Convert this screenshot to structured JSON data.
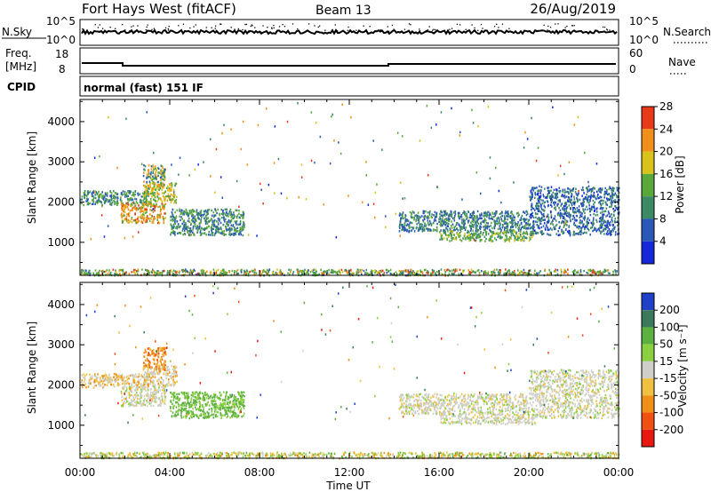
{
  "header": {
    "station": "Fort Hays West (fitACF)",
    "beam": "Beam 13",
    "date": "26/Aug/2019"
  },
  "status_panels": {
    "nsky_label": "N.Sky",
    "nsearch_label": "N.Search",
    "noise_ticks_left": [
      "10^5",
      "10^0"
    ],
    "noise_ticks_right": [
      "10^5",
      "10^0"
    ],
    "freq_label_line1": "Freq.",
    "freq_label_line2": "[MHz]",
    "freq_ticks": [
      "18",
      "8"
    ],
    "nave_label": "Nave",
    "nave_ticks": [
      "60",
      "0"
    ],
    "cpid_label": "CPID",
    "cpid_text": "normal (fast) 151 IF"
  },
  "chart_data": [
    {
      "type": "heatmap",
      "name": "power",
      "ylabel": "Slant Range [km]",
      "yticks": [
        1000,
        2000,
        3000,
        4000
      ],
      "ylim": [
        180,
        4550
      ],
      "colorbar_label": "Power [dB]",
      "colorbar_ticks": [
        "4",
        "8",
        "12",
        "16",
        "20",
        "24",
        "28"
      ],
      "colorbar_colors": [
        "#1428d8",
        "#2a58b8",
        "#3c8a64",
        "#5aa83a",
        "#d8c21c",
        "#f0901a",
        "#e83a18"
      ],
      "echo_regions": [
        {
          "t_start": 0.0,
          "t_end": 24.0,
          "r_start": 200,
          "r_end": 350,
          "dominant": "mixed-high"
        },
        {
          "t_start": 0.0,
          "t_end": 3.0,
          "r_start": 1950,
          "r_end": 2300,
          "dominant": "green-blue"
        },
        {
          "t_start": 1.8,
          "t_end": 3.8,
          "r_start": 1500,
          "r_end": 2000,
          "dominant": "orange-yellow"
        },
        {
          "t_start": 2.8,
          "t_end": 4.3,
          "r_start": 2000,
          "r_end": 2500,
          "dominant": "green-yellow"
        },
        {
          "t_start": 2.8,
          "t_end": 3.8,
          "r_start": 2400,
          "r_end": 2950,
          "dominant": "blue-orange"
        },
        {
          "t_start": 4.0,
          "t_end": 7.3,
          "r_start": 1200,
          "r_end": 1850,
          "dominant": "green-blue"
        },
        {
          "t_start": 14.2,
          "t_end": 20.0,
          "r_start": 1300,
          "r_end": 1800,
          "dominant": "blue-green"
        },
        {
          "t_start": 16.0,
          "t_end": 20.3,
          "r_start": 1050,
          "r_end": 1300,
          "dominant": "green"
        },
        {
          "t_start": 20.0,
          "t_end": 24.0,
          "r_start": 1200,
          "r_end": 2400,
          "dominant": "blue"
        }
      ]
    },
    {
      "type": "heatmap",
      "name": "velocity",
      "ylabel": "Slant Range [km]",
      "yticks": [
        1000,
        2000,
        3000,
        4000
      ],
      "ylim": [
        180,
        4550
      ],
      "colorbar_label": "Velocity [m s⁻¹]",
      "colorbar_ticks": [
        "200",
        "100",
        "50",
        "15",
        "-15",
        "-50",
        "-100",
        "-200"
      ],
      "colorbar_colors": [
        "#2040c8",
        "#3a7a5a",
        "#5cb040",
        "#8ad040",
        "#cfcfc8",
        "#f0c040",
        "#f09018",
        "#f05010",
        "#e81810"
      ],
      "echo_regions": [
        {
          "t_start": 0.0,
          "t_end": 24.0,
          "r_start": 200,
          "r_end": 350,
          "dominant": "green-orange"
        },
        {
          "t_start": 0.0,
          "t_end": 3.0,
          "r_start": 1950,
          "r_end": 2300,
          "dominant": "orange-gray"
        },
        {
          "t_start": 1.8,
          "t_end": 3.8,
          "r_start": 1500,
          "r_end": 2000,
          "dominant": "gray"
        },
        {
          "t_start": 2.8,
          "t_end": 4.3,
          "r_start": 2000,
          "r_end": 2500,
          "dominant": "gray-orange"
        },
        {
          "t_start": 2.8,
          "t_end": 3.8,
          "r_start": 2400,
          "r_end": 2950,
          "dominant": "orange"
        },
        {
          "t_start": 4.0,
          "t_end": 7.3,
          "r_start": 1200,
          "r_end": 1850,
          "dominant": "green"
        },
        {
          "t_start": 14.2,
          "t_end": 20.0,
          "r_start": 1300,
          "r_end": 1800,
          "dominant": "gray"
        },
        {
          "t_start": 16.0,
          "t_end": 20.3,
          "r_start": 1050,
          "r_end": 1300,
          "dominant": "gray"
        },
        {
          "t_start": 20.0,
          "t_end": 24.0,
          "r_start": 1200,
          "r_end": 2400,
          "dominant": "gray"
        }
      ]
    }
  ],
  "x_axis": {
    "label": "Time UT",
    "ticks": [
      "00:00",
      "04:00",
      "08:00",
      "12:00",
      "16:00",
      "20:00",
      "00:00"
    ],
    "xlim": [
      0,
      24
    ]
  }
}
